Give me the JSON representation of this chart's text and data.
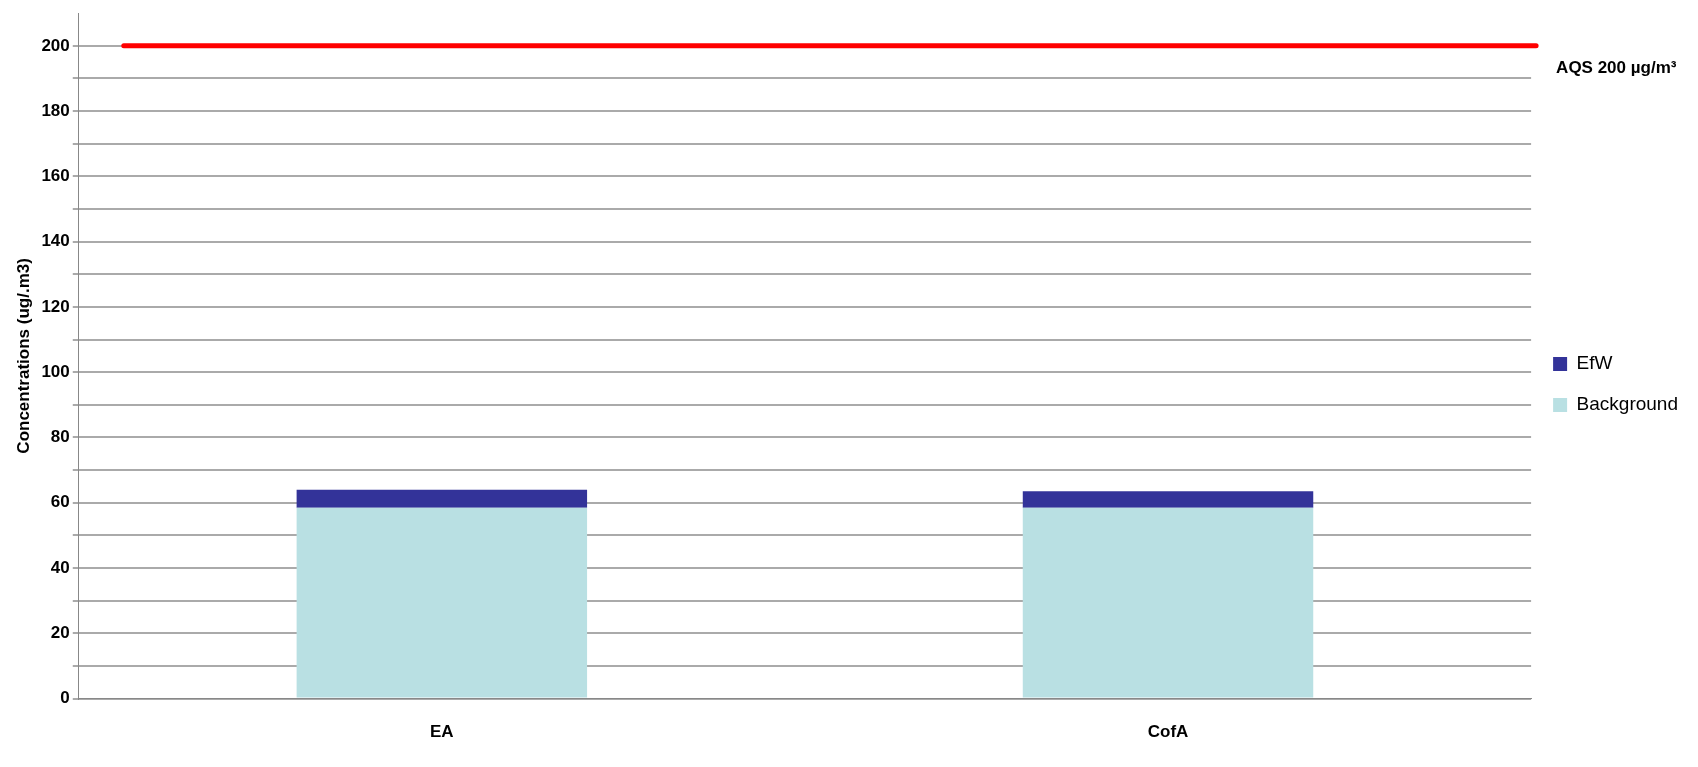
{
  "chart_data": {
    "type": "bar",
    "ylabel": "Concentrations (ug/.m3)",
    "categories": [
      "EA",
      "CofA"
    ],
    "stacked": true,
    "series": [
      {
        "name": "Background",
        "color": "#b9e0e3",
        "values": [
          58.5,
          58.5
        ]
      },
      {
        "name": "EfW",
        "color": "#333399",
        "values": [
          5.5,
          5
        ]
      }
    ],
    "ylim": [
      0,
      210
    ],
    "yticks": [
      0,
      {
        "value": 10,
        "label": null
      },
      20,
      {
        "value": 30,
        "label": null
      },
      40,
      {
        "value": 50,
        "label": null
      },
      60,
      {
        "value": 70,
        "label": null
      },
      80,
      {
        "value": 90,
        "label": null
      },
      100,
      {
        "value": 110,
        "label": null
      },
      120,
      {
        "value": 130,
        "label": null
      },
      140,
      {
        "value": 150,
        "label": null
      },
      160,
      {
        "value": 170,
        "label": null
      },
      180,
      {
        "value": 190,
        "label": null
      },
      200
    ],
    "grid": "y",
    "legend": "right",
    "ref_lines": [
      {
        "axis": "y",
        "value": 200,
        "label": "AQS 200 µg/m³",
        "color": "#ff0000"
      }
    ]
  }
}
